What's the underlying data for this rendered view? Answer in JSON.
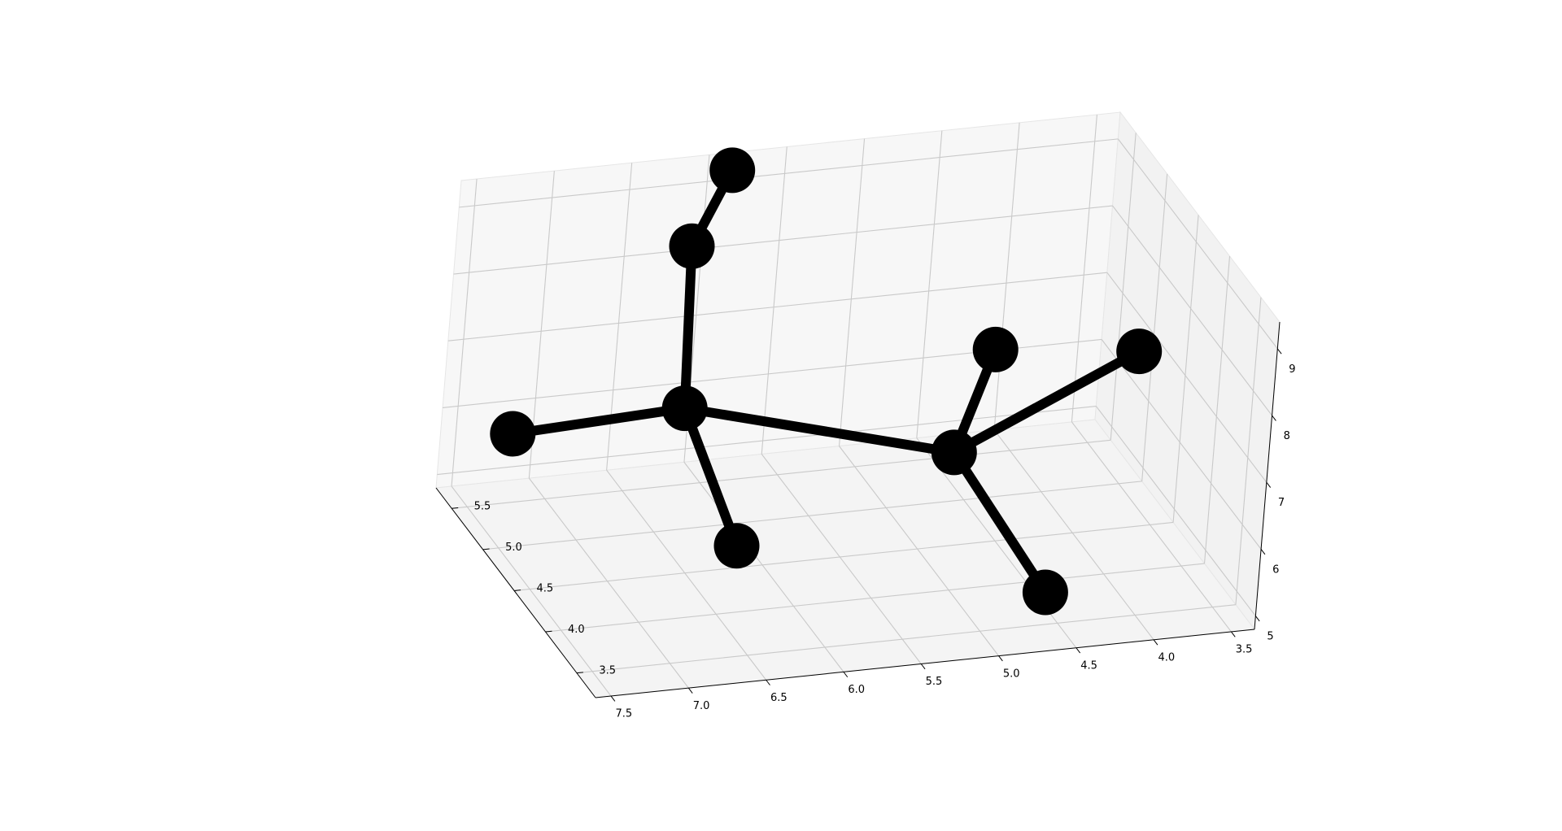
{
  "chart_data": {
    "type": "scatter3d",
    "title": "",
    "xlabel": "",
    "ylabel": "",
    "zlabel": "",
    "grid": true,
    "atom_color": "#000000",
    "bond_color": "#000000",
    "pane_colors": {
      "back": "#f7f7f7",
      "side": "#f2f2f2",
      "floor": "#f4f4f4"
    },
    "grid_color": "#c9c9c9",
    "x_axis": {
      "lim": [
        3.35,
        7.6
      ],
      "ticks": [
        "7.5",
        "7.0",
        "6.5",
        "6.0",
        "5.5",
        "5.0",
        "4.5",
        "4.0",
        "3.5"
      ]
    },
    "y_axis": {
      "lim": [
        3.2,
        5.75
      ],
      "ticks": [
        "5.5",
        "5.0",
        "4.5",
        "4.0",
        "3.5"
      ]
    },
    "z_axis": {
      "lim": [
        4.8,
        9.4
      ],
      "ticks": [
        "5",
        "6",
        "7",
        "8",
        "9"
      ]
    },
    "atoms": [
      {
        "id": 0,
        "x": 6.34,
        "y": 5.05,
        "z": 6.55
      },
      {
        "id": 1,
        "x": 4.88,
        "y": 4.35,
        "z": 6.4
      },
      {
        "id": 2,
        "x": 6.2,
        "y": 5.45,
        "z": 8.45
      },
      {
        "id": 3,
        "x": 6.0,
        "y": 5.4,
        "z": 9.6
      },
      {
        "id": 4,
        "x": 7.4,
        "y": 5.15,
        "z": 6.3
      },
      {
        "id": 5,
        "x": 6.47,
        "y": 3.85,
        "z": 6.0
      },
      {
        "id": 6,
        "x": 4.35,
        "y": 5.05,
        "z": 6.95
      },
      {
        "id": 7,
        "x": 3.55,
        "y": 4.75,
        "z": 7.1
      },
      {
        "id": 8,
        "x": 4.55,
        "y": 3.6,
        "z": 5.15
      }
    ],
    "bonds": [
      [
        0,
        1
      ],
      [
        0,
        2
      ],
      [
        2,
        3
      ],
      [
        0,
        4
      ],
      [
        0,
        5
      ],
      [
        1,
        6
      ],
      [
        1,
        7
      ],
      [
        1,
        8
      ]
    ]
  }
}
